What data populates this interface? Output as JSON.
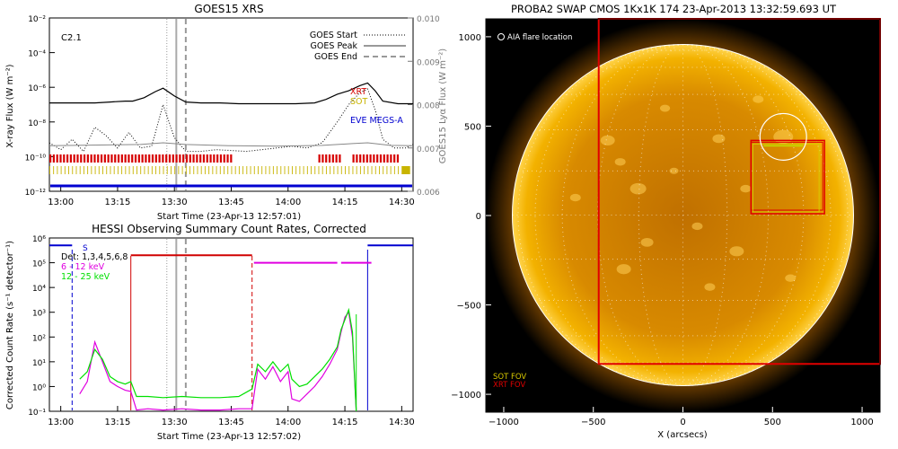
{
  "goes": {
    "title": "GOES15 XRS",
    "class_label": "C2.1",
    "ylabel_left": "X-ray Flux (W m⁻²)",
    "ylabel_right": "GOES15 Lyα Flux (W m⁻²)",
    "xlabel": "Start Time (23-Apr-13 12:57:01)",
    "legend": [
      "GOES Start",
      "GOES Peak",
      "GOES End"
    ],
    "instrument_labels": [
      {
        "text": "XRT",
        "color": "#d60000"
      },
      {
        "text": "SOT",
        "color": "#c8b400"
      },
      {
        "text": "EVE MEGS-A",
        "color": "#0000d0"
      }
    ],
    "yticks_left": [
      "10⁻²",
      "10⁻⁴",
      "10⁻⁶",
      "10⁻⁸",
      "10⁻¹⁰",
      "10⁻¹²"
    ],
    "yticks_right": [
      "0.010",
      "0.009",
      "0.008",
      "0.007",
      "0.006"
    ],
    "xticks": [
      "13:00",
      "13:15",
      "13:30",
      "13:45",
      "14:00",
      "14:15",
      "14:30"
    ]
  },
  "hessi": {
    "title": "HESSI Observing Summary Count Rates, Corrected",
    "ylabel": "Corrected Count Rate (s⁻¹ detector⁻¹)",
    "xlabel": "Start Time (23-Apr-13 12:57:02)",
    "legend_detectors": "Det: 1,3,4,5,6,8",
    "legend_marker": "S",
    "yticks": [
      "10⁶",
      "10⁵",
      "10⁴",
      "10³",
      "10²",
      "10¹",
      "10⁰",
      "10⁻¹"
    ],
    "xticks": [
      "13:00",
      "13:15",
      "13:30",
      "13:45",
      "14:00",
      "14:15",
      "14:30"
    ]
  },
  "swap": {
    "title": "PROBA2 SWAP CMOS 1Kx1K 174 23-Apr-2013 13:32:59.693 UT",
    "aia_label": "AIA flare location",
    "fov_labels": [
      {
        "text": "SOT FOV",
        "color": "#d8c800"
      },
      {
        "text": "XRT FOV",
        "color": "#e00000"
      }
    ],
    "xlabel": "X (arcsecs)",
    "xticks": [
      "−1000",
      "−500",
      "0",
      "500",
      "1000"
    ],
    "yticks": [
      "1000",
      "500",
      "0",
      "−500",
      "−1000"
    ]
  },
  "chart_data": [
    {
      "type": "line",
      "title": "GOES15 XRS",
      "xlabel": "Start Time (23-Apr-13 12:57:01)",
      "ylabel": "X-ray Flux (W m⁻²)",
      "ylabel_right": "GOES15 Lyα Flux (W m⁻²)",
      "x_range": [
        "12:57",
        "14:33"
      ],
      "ylim_log10": [
        -12,
        -2
      ],
      "ylim_right": [
        0.006,
        0.01
      ],
      "log_y": true,
      "event_times": {
        "GOES Start": "13:28",
        "GOES Peak": "13:30",
        "GOES End": "13:33"
      },
      "series": [
        {
          "name": "",
          "color": "#000000",
          "style": "solid",
          "x_min": [
            0,
            8,
            12,
            16,
            20,
            22,
            25,
            28,
            30,
            33,
            36,
            40,
            45,
            50,
            55,
            60,
            65,
            70,
            73,
            76,
            79,
            82,
            84,
            86,
            88,
            92,
            96
          ],
          "log10_y": [
            -6.9,
            -6.9,
            -6.9,
            -6.85,
            -6.8,
            -6.8,
            -6.6,
            -6.25,
            -6.05,
            -6.5,
            -6.85,
            -6.9,
            -6.9,
            -6.95,
            -6.95,
            -6.95,
            -6.95,
            -6.9,
            -6.7,
            -6.4,
            -6.2,
            -5.9,
            -5.75,
            -6.2,
            -6.8,
            -6.95,
            -6.95
          ]
        },
        {
          "name": "",
          "color": "#000000",
          "style": "dotted",
          "x_min": [
            0,
            3,
            6,
            9,
            12,
            15,
            18,
            21,
            24,
            27,
            30,
            33,
            36,
            40,
            44,
            48,
            52,
            56,
            60,
            64,
            68,
            72,
            76,
            79,
            82,
            84,
            86,
            88,
            91,
            94,
            96
          ],
          "log10_y": [
            -9.2,
            -9.6,
            -9.0,
            -9.7,
            -8.3,
            -8.8,
            -9.5,
            -8.6,
            -9.5,
            -9.4,
            -7.0,
            -8.9,
            -9.7,
            -9.7,
            -9.6,
            -9.65,
            -9.7,
            -9.6,
            -9.5,
            -9.4,
            -9.5,
            -9.2,
            -8.0,
            -7.0,
            -6.3,
            -6.1,
            -7.3,
            -9.0,
            -9.5,
            -9.5,
            -9.3
          ]
        },
        {
          "name": "",
          "color": "#888888",
          "style": "solid",
          "x_min": [
            0,
            24,
            30,
            36,
            48,
            60,
            72,
            80,
            84,
            90,
            96
          ],
          "y_right": [
            0.00705,
            0.00708,
            0.00712,
            0.00708,
            0.00705,
            0.00704,
            0.00706,
            0.0071,
            0.00712,
            0.00706,
            0.00705
          ]
        }
      ],
      "instrument_coverage": [
        {
          "name": "XRT",
          "color": "#d60000",
          "intervals_min": [
            [
              0,
              48
            ],
            [
              71,
              77
            ],
            [
              80,
              92
            ]
          ]
        },
        {
          "name": "SOT",
          "color": "#c8b400",
          "intervals_min": [
            [
              0,
              96
            ]
          ]
        },
        {
          "name": "EVE MEGS-A",
          "color": "#0000d0",
          "intervals_min": [
            [
              0,
              96
            ]
          ]
        }
      ]
    },
    {
      "type": "line",
      "title": "HESSI Observing Summary Count Rates, Corrected",
      "xlabel": "Start Time (23-Apr-13 12:57:02)",
      "ylabel": "Corrected Count Rate (s⁻¹ detector⁻¹)",
      "x_range": [
        "12:57",
        "14:33"
      ],
      "ylim_log10": [
        -1,
        6
      ],
      "log_y": true,
      "series": [
        {
          "name": "6 - 12 keV",
          "color": "#e000e0",
          "x_min": [
            8,
            10,
            12,
            14,
            16,
            18,
            20,
            21.5,
            23,
            26,
            30,
            35,
            40,
            45,
            50,
            53.5,
            55,
            57,
            59,
            61,
            63,
            64,
            66,
            68,
            70,
            72,
            74,
            76,
            77,
            78,
            79,
            80,
            81
          ],
          "log10_y": [
            -0.3,
            0.2,
            1.8,
            1.0,
            0.2,
            0.0,
            -0.15,
            -0.2,
            -0.95,
            -0.9,
            -0.95,
            -0.9,
            -0.95,
            -0.95,
            -0.9,
            -0.9,
            0.7,
            0.3,
            0.8,
            0.2,
            0.6,
            -0.5,
            -0.6,
            -0.3,
            0.0,
            0.4,
            0.9,
            1.5,
            2.2,
            2.8,
            3.0,
            2.0,
            -1.0
          ]
        },
        {
          "name": "12 - 25 keV",
          "color": "#00e000",
          "x_min": [
            8,
            10,
            12,
            14,
            16,
            18,
            20,
            21.5,
            23,
            26,
            30,
            35,
            40,
            45,
            50,
            53.5,
            55,
            57,
            59,
            61,
            63,
            64,
            66,
            68,
            70,
            72,
            74,
            76,
            77,
            78,
            79,
            80,
            81
          ],
          "log10_y": [
            0.3,
            0.6,
            1.5,
            1.1,
            0.4,
            0.2,
            0.1,
            0.2,
            -0.4,
            -0.4,
            -0.45,
            -0.4,
            -0.45,
            -0.45,
            -0.4,
            -0.1,
            0.9,
            0.6,
            1.0,
            0.6,
            0.9,
            0.3,
            0.0,
            0.1,
            0.4,
            0.7,
            1.1,
            1.6,
            2.3,
            2.7,
            3.1,
            2.2,
            -1.0
          ]
        },
        {
          "name": "",
          "color": "#d00000",
          "x_min": [
            21.5,
            53.5
          ],
          "log10_y": [
            5.3,
            5.3
          ]
        },
        {
          "name": "",
          "color": "#e000e0",
          "x_min": [
            54,
            76,
            77,
            85
          ],
          "log10_y": [
            5.0,
            5.0,
            5.0,
            5.0
          ]
        },
        {
          "name": "",
          "color": "#0000d0",
          "x_min": [
            0,
            6,
            84,
            96
          ],
          "log10_y": [
            5.7,
            5.7,
            5.7,
            5.7
          ]
        }
      ]
    },
    {
      "type": "scatter",
      "title": "PROBA2 SWAP CMOS 1Kx1K 174 23-Apr-2013 13:32:59.693 UT",
      "xlabel": "X (arcsecs)",
      "ylabel": "",
      "xlim": [
        -1100,
        1100
      ],
      "ylim": [
        -1100,
        1100
      ],
      "solar_radius_arcsec": 950,
      "aia_flare_location": {
        "x": 560,
        "y": 440,
        "radius": 130
      },
      "xrt_fov": {
        "x0": -470,
        "y0": -830,
        "x1": 1100,
        "y1": 1100,
        "color": "#e00000"
      },
      "sot_fov": {
        "x0": 390,
        "y0": 20,
        "x1": 760,
        "y1": 400,
        "color": "#d8c800"
      },
      "xrt_box2": {
        "x0": 380,
        "y0": 10,
        "x1": 790,
        "y1": 420,
        "color": "#e00000"
      }
    }
  ]
}
